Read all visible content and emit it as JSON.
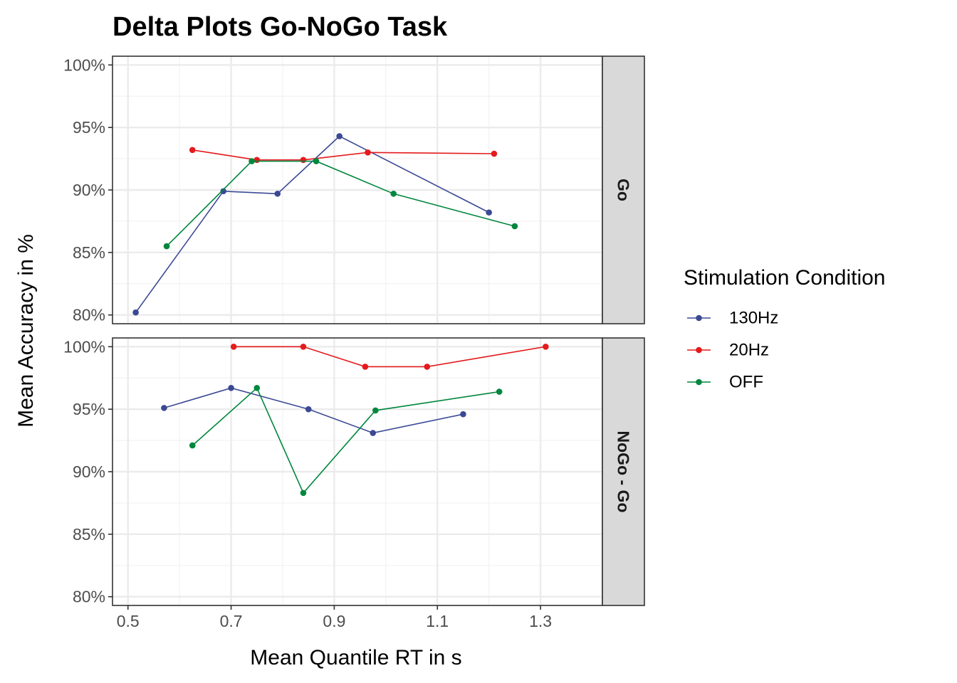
{
  "chart_data": {
    "type": "line",
    "title": "Delta Plots Go-NoGo Task",
    "xlabel": "Mean Quantile RT in s",
    "ylabel": "Mean Accuracy in %",
    "xlim": [
      0.47,
      1.42
    ],
    "ylim": [
      79.3,
      100.7
    ],
    "x_ticks": [
      0.5,
      0.7,
      0.9,
      1.1,
      1.3
    ],
    "x_tick_labels": [
      "0.5",
      "0.7",
      "0.9",
      "1.1",
      "1.3"
    ],
    "y_ticks": [
      80,
      85,
      90,
      95,
      100
    ],
    "y_tick_labels": [
      "80%",
      "85%",
      "90%",
      "95%",
      "100%"
    ],
    "grid": true,
    "legend": {
      "title": "Stimulation Condition",
      "position": "right",
      "entries": [
        "130Hz",
        "20Hz",
        "OFF"
      ]
    },
    "series_colors": {
      "130Hz": "#3b4994",
      "20Hz": "#e41a1c",
      "OFF": "#00873e"
    },
    "facets": [
      {
        "label": "Go",
        "series": [
          {
            "name": "130Hz",
            "x": [
              0.515,
              0.685,
              0.79,
              0.91,
              1.2
            ],
            "y": [
              80.2,
              89.9,
              89.7,
              94.3,
              88.2
            ]
          },
          {
            "name": "20Hz",
            "x": [
              0.625,
              0.75,
              0.84,
              0.965,
              1.21
            ],
            "y": [
              93.2,
              92.4,
              92.4,
              93.0,
              92.9
            ]
          },
          {
            "name": "OFF",
            "x": [
              0.575,
              0.74,
              0.865,
              1.015,
              1.25
            ],
            "y": [
              85.5,
              92.3,
              92.3,
              89.7,
              87.1
            ]
          }
        ]
      },
      {
        "label": "NoGo - Go",
        "series": [
          {
            "name": "130Hz",
            "x": [
              0.57,
              0.7,
              0.85,
              0.975,
              1.15
            ],
            "y": [
              95.1,
              96.7,
              95.0,
              93.1,
              94.6
            ]
          },
          {
            "name": "20Hz",
            "x": [
              0.705,
              0.84,
              0.96,
              1.08,
              1.31
            ],
            "y": [
              100.0,
              100.0,
              98.4,
              98.4,
              100.0
            ]
          },
          {
            "name": "OFF",
            "x": [
              0.625,
              0.75,
              0.84,
              0.98,
              1.22
            ],
            "y": [
              92.1,
              96.7,
              88.3,
              94.9,
              96.4
            ]
          }
        ]
      }
    ]
  }
}
